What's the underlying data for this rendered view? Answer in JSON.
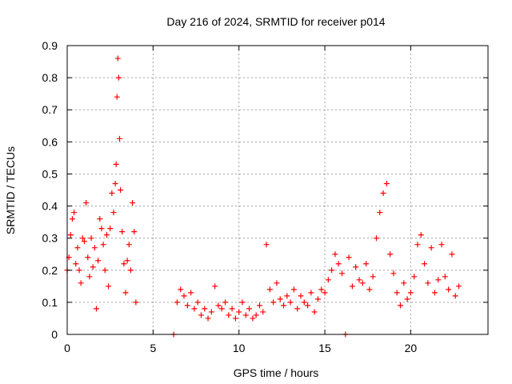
{
  "chart_data": {
    "type": "scatter",
    "title": "Day 216 of 2024, SRMTID for receiver p014",
    "xlabel": "GPS time / hours",
    "ylabel": "SRMTID / TECUs",
    "xlim": [
      0,
      24.5
    ],
    "ylim": [
      0,
      0.9
    ],
    "xticks": [
      0,
      5,
      10,
      15,
      20
    ],
    "xtick_labels": [
      "0",
      "5",
      "10",
      "15",
      "20"
    ],
    "yticks": [
      0,
      0.1,
      0.2,
      0.3,
      0.4,
      0.5,
      0.6,
      0.7,
      0.8,
      0.9
    ],
    "ytick_labels": [
      "0",
      "0.1",
      "0.2",
      "0.3",
      "0.4",
      "0.5",
      "0.6",
      "0.7",
      "0.8",
      "0.9"
    ],
    "grid": true,
    "marker": "plus",
    "color": "#ff0000",
    "series": [
      {
        "name": "SRMTID",
        "points": [
          [
            0.0,
            0.2
          ],
          [
            0.1,
            0.24
          ],
          [
            0.2,
            0.31
          ],
          [
            0.3,
            0.36
          ],
          [
            0.4,
            0.38
          ],
          [
            0.5,
            0.22
          ],
          [
            0.6,
            0.27
          ],
          [
            0.7,
            0.2
          ],
          [
            0.8,
            0.16
          ],
          [
            0.9,
            0.3
          ],
          [
            1.0,
            0.29
          ],
          [
            1.1,
            0.41
          ],
          [
            1.2,
            0.24
          ],
          [
            1.3,
            0.18
          ],
          [
            1.4,
            0.3
          ],
          [
            1.5,
            0.21
          ],
          [
            1.6,
            0.27
          ],
          [
            1.7,
            0.08
          ],
          [
            1.8,
            0.23
          ],
          [
            1.9,
            0.36
          ],
          [
            2.0,
            0.33
          ],
          [
            2.1,
            0.28
          ],
          [
            2.2,
            0.2
          ],
          [
            2.3,
            0.31
          ],
          [
            2.4,
            0.15
          ],
          [
            2.5,
            0.33
          ],
          [
            2.6,
            0.44
          ],
          [
            2.7,
            0.38
          ],
          [
            2.8,
            0.47
          ],
          [
            2.85,
            0.53
          ],
          [
            2.9,
            0.74
          ],
          [
            2.95,
            0.86
          ],
          [
            3.0,
            0.8
          ],
          [
            3.05,
            0.61
          ],
          [
            3.1,
            0.45
          ],
          [
            3.2,
            0.32
          ],
          [
            3.3,
            0.22
          ],
          [
            3.4,
            0.13
          ],
          [
            3.5,
            0.23
          ],
          [
            3.6,
            0.28
          ],
          [
            3.7,
            0.2
          ],
          [
            3.8,
            0.41
          ],
          [
            3.9,
            0.32
          ],
          [
            4.0,
            0.1
          ],
          [
            6.2,
            0.0
          ],
          [
            6.4,
            0.1
          ],
          [
            6.6,
            0.14
          ],
          [
            6.8,
            0.12
          ],
          [
            7.0,
            0.09
          ],
          [
            7.2,
            0.13
          ],
          [
            7.4,
            0.08
          ],
          [
            7.6,
            0.1
          ],
          [
            7.8,
            0.06
          ],
          [
            8.0,
            0.08
          ],
          [
            8.2,
            0.05
          ],
          [
            8.4,
            0.07
          ],
          [
            8.6,
            0.15
          ],
          [
            8.8,
            0.09
          ],
          [
            9.0,
            0.08
          ],
          [
            9.2,
            0.1
          ],
          [
            9.4,
            0.06
          ],
          [
            9.6,
            0.08
          ],
          [
            9.8,
            0.05
          ],
          [
            10.0,
            0.07
          ],
          [
            10.2,
            0.1
          ],
          [
            10.4,
            0.06
          ],
          [
            10.6,
            0.08
          ],
          [
            10.8,
            0.05
          ],
          [
            11.0,
            0.06
          ],
          [
            11.2,
            0.09
          ],
          [
            11.4,
            0.07
          ],
          [
            11.6,
            0.28
          ],
          [
            11.8,
            0.14
          ],
          [
            12.0,
            0.1
          ],
          [
            12.2,
            0.16
          ],
          [
            12.4,
            0.11
          ],
          [
            12.6,
            0.09
          ],
          [
            12.8,
            0.12
          ],
          [
            13.0,
            0.1
          ],
          [
            13.2,
            0.14
          ],
          [
            13.4,
            0.08
          ],
          [
            13.6,
            0.12
          ],
          [
            13.8,
            0.1
          ],
          [
            14.0,
            0.09
          ],
          [
            14.2,
            0.13
          ],
          [
            14.4,
            0.07
          ],
          [
            14.6,
            0.11
          ],
          [
            14.8,
            0.14
          ],
          [
            15.0,
            0.13
          ],
          [
            15.2,
            0.17
          ],
          [
            15.4,
            0.2
          ],
          [
            15.6,
            0.25
          ],
          [
            15.8,
            0.22
          ],
          [
            16.0,
            0.19
          ],
          [
            16.2,
            0.0
          ],
          [
            16.4,
            0.24
          ],
          [
            16.6,
            0.15
          ],
          [
            16.8,
            0.21
          ],
          [
            17.0,
            0.17
          ],
          [
            17.2,
            0.16
          ],
          [
            17.4,
            0.22
          ],
          [
            17.6,
            0.14
          ],
          [
            17.8,
            0.18
          ],
          [
            18.0,
            0.3
          ],
          [
            18.2,
            0.38
          ],
          [
            18.4,
            0.44
          ],
          [
            18.6,
            0.47
          ],
          [
            18.8,
            0.25
          ],
          [
            19.0,
            0.19
          ],
          [
            19.2,
            0.13
          ],
          [
            19.4,
            0.09
          ],
          [
            19.6,
            0.16
          ],
          [
            19.8,
            0.11
          ],
          [
            20.0,
            0.13
          ],
          [
            20.2,
            0.18
          ],
          [
            20.4,
            0.28
          ],
          [
            20.6,
            0.31
          ],
          [
            20.8,
            0.22
          ],
          [
            21.0,
            0.16
          ],
          [
            21.2,
            0.27
          ],
          [
            21.4,
            0.13
          ],
          [
            21.6,
            0.17
          ],
          [
            21.8,
            0.28
          ],
          [
            22.0,
            0.18
          ],
          [
            22.2,
            0.14
          ],
          [
            22.4,
            0.25
          ],
          [
            22.6,
            0.12
          ],
          [
            22.8,
            0.15
          ]
        ]
      }
    ]
  }
}
